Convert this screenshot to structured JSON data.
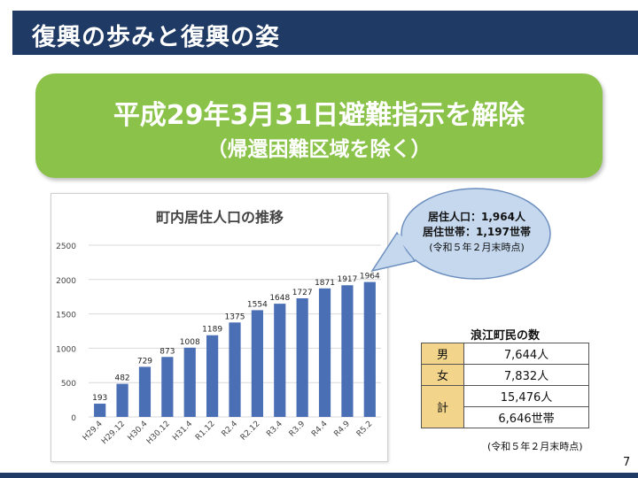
{
  "header": {
    "title": "復興の歩みと復興の姿"
  },
  "banner": {
    "main": "平成29年3月31日避難指示を解除",
    "sub": "（帰還困難区域を除く）"
  },
  "chart_data": {
    "type": "bar",
    "title": "町内居住人口の推移",
    "categories": [
      "H29.4",
      "H29.12",
      "H30.4",
      "H30.12",
      "H31.4",
      "R1.12",
      "R2.4",
      "R2.12",
      "R3.4",
      "R3.9",
      "R4.4",
      "R4.9",
      "R5.2"
    ],
    "values": [
      193,
      482,
      729,
      873,
      1008,
      1189,
      1375,
      1554,
      1648,
      1727,
      1871,
      1917,
      1964
    ],
    "ylim": [
      0,
      2500
    ],
    "yticks": [
      0,
      500,
      1000,
      1500,
      2000,
      2500
    ],
    "xlabel": "",
    "ylabel": "",
    "grid": true,
    "bar_color": "#4a6fb5"
  },
  "callout": {
    "line1": "居住人口：1,964人",
    "line2": "居住世帯：1,197世帯",
    "note": "(令和５年２月末時点)"
  },
  "population_table": {
    "title": "浪江町民の数",
    "rows": [
      {
        "label": "男",
        "value": "7,644人"
      },
      {
        "label": "女",
        "value": "7,832人"
      },
      {
        "label": "計",
        "value": "15,476人",
        "value2": "6,646世帯"
      }
    ],
    "note": "(令和５年２月末時点)"
  },
  "page": {
    "number": "7"
  },
  "colors": {
    "title_bar": "#1f3a64",
    "banner": "#8bc34a",
    "callout": "#c5d8ee",
    "table_label": "#f2d58a"
  }
}
